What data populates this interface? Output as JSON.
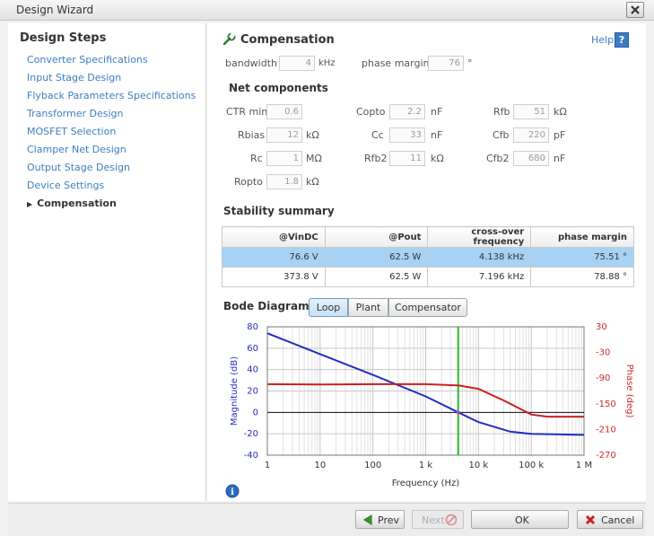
{
  "window": {
    "title": "Design Wizard"
  },
  "sidebar": {
    "title": "Design Steps",
    "steps": [
      "Converter Specifications",
      "Input Stage Design",
      "Flyback Parameters Specifications",
      "Transformer Design",
      "MOSFET Selection",
      "Clamper Net Design",
      "Output Stage Design",
      "Device Settings"
    ],
    "active_marker": "▶",
    "active_step": "Compensation"
  },
  "main": {
    "title": "Compensation",
    "help_label": "Help",
    "bandwidth": {
      "label": "bandwidth",
      "value": "4",
      "unit": "kHz"
    },
    "phase_margin": {
      "label": "phase margin",
      "value": "76",
      "unit": "°"
    },
    "net_title": "Net components",
    "components": [
      {
        "label": "CTR min",
        "value": "0.6",
        "unit": ""
      },
      {
        "label": "Copto",
        "value": "2.2",
        "unit": "nF"
      },
      {
        "label": "Rfb",
        "value": "51",
        "unit": "kΩ"
      },
      {
        "label": "Rbias",
        "value": "12",
        "unit": "kΩ"
      },
      {
        "label": "Cc",
        "value": "33",
        "unit": "nF"
      },
      {
        "label": "Cfb",
        "value": "220",
        "unit": "pF"
      },
      {
        "label": "Rc",
        "value": "1",
        "unit": "MΩ"
      },
      {
        "label": "Rfb2",
        "value": "11",
        "unit": "kΩ"
      },
      {
        "label": "Cfb2",
        "value": "680",
        "unit": "nF"
      },
      {
        "label": "Ropto",
        "value": "1.8",
        "unit": "kΩ"
      }
    ],
    "stability_title": "Stability summary",
    "table": {
      "headers": [
        "@VinDC",
        "@Pout",
        "cross-over frequency",
        "phase margin"
      ],
      "rows": [
        [
          "76.6 V",
          "62.5 W",
          "4.138 kHz",
          "75.51 °"
        ],
        [
          "373.8 V",
          "62.5 W",
          "7.196 kHz",
          "78.88 °"
        ]
      ]
    },
    "bode_title": "Bode Diagram",
    "tabs": [
      "Loop",
      "Plant",
      "Compensator"
    ],
    "active_tab": "Loop"
  },
  "chart_data": {
    "type": "line",
    "xlabel": "Frequency (Hz)",
    "ylabel": "Magnitude (dB)",
    "y2label": "Phase (deg)",
    "x_scale": "log",
    "xlim": [
      1,
      1000000
    ],
    "ylim": [
      -40,
      80
    ],
    "y2lim": [
      -270,
      30
    ],
    "x_ticks": [
      "1",
      "10",
      "100",
      "1 k",
      "10 k",
      "100 k",
      "1 M"
    ],
    "y_ticks": [
      "80",
      "60",
      "40",
      "20",
      "0",
      "-20",
      "-40"
    ],
    "y2_ticks": [
      "30",
      "-30",
      "-90",
      "-150",
      "-210",
      "-270"
    ],
    "grid": true,
    "crossover_hz": 4138,
    "series": [
      {
        "axis": "left",
        "color": "#1f2fbf",
        "x": [
          1,
          10,
          100,
          1000,
          4138,
          10000,
          40000,
          100000,
          300000,
          1000000
        ],
        "y": [
          74,
          54.5,
          35,
          15,
          0,
          -9,
          -18,
          -20,
          -20.5,
          -21
        ]
      },
      {
        "axis": "right",
        "color": "#cc1f1f",
        "x": [
          1,
          10,
          100,
          1000,
          4138,
          10000,
          30000,
          100000,
          200000,
          1000000
        ],
        "y": [
          -104,
          -105,
          -104,
          -104,
          -107,
          -115,
          -142,
          -175,
          -180,
          -180
        ]
      }
    ],
    "colors": {
      "magnitude_axis": "#2b2bbf",
      "phase_axis": "#cc2a2a",
      "crossover_line": "#2dbb2d",
      "crossover_dot": "#cc33cc"
    }
  },
  "footer": {
    "prev": "Prev",
    "next": "Next",
    "ok": "OK",
    "cancel": "Cancel"
  }
}
